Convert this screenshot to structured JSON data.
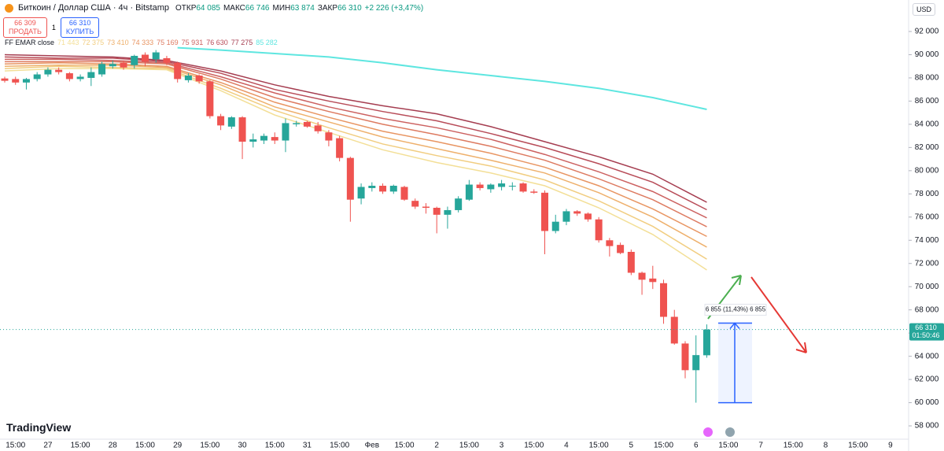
{
  "chart_data": {
    "type": "candlestick",
    "title": "Биткоин / Доллар США · 4ч · Bitstamp",
    "ohlc_legend": [
      {
        "label": "ОТКР",
        "value": "64 085"
      },
      {
        "label": "МАКС",
        "value": "66 746"
      },
      {
        "label": "МИН",
        "value": "63 874"
      },
      {
        "label": "ЗАКР",
        "value": "66 310"
      }
    ],
    "change": "+2 226 (+3,47%)",
    "trade": {
      "sell_price": "66 309",
      "sell": "ПРОДАТЬ",
      "spread": "1",
      "buy_price": "66 310",
      "buy": "КУПИТЬ"
    },
    "currency": "USD",
    "categories": [
      null,
      "15:00",
      null,
      null,
      "27",
      null,
      null,
      "15:00",
      null,
      null,
      "28",
      null,
      null,
      "15:00",
      null,
      null,
      "29",
      null,
      null,
      "15:00",
      null,
      null,
      "30",
      null,
      null,
      "15:00",
      null,
      null,
      "31",
      null,
      null,
      "15:00",
      null,
      null,
      "Фев",
      null,
      null,
      "15:00",
      null,
      null,
      "2",
      null,
      null,
      "15:00",
      null,
      null,
      "3",
      null,
      null,
      "15:00",
      null,
      null,
      "4",
      null,
      null,
      "15:00",
      null,
      null,
      "5",
      null,
      null,
      "15:00",
      null,
      null,
      "6",
      null,
      null,
      "15:00",
      null,
      null,
      "7",
      null,
      null,
      "15:00",
      null,
      null,
      "8",
      null,
      null,
      "15:00",
      null,
      null,
      "9"
    ],
    "open": [
      87950,
      87900,
      87600,
      87900,
      88300,
      88700,
      88400,
      87900,
      88000,
      88300,
      89000,
      89300,
      89100,
      90000,
      89600,
      89700,
      89300,
      87800,
      88200,
      87700,
      84700,
      83800,
      84600,
      82500,
      82600,
      82900,
      82600,
      84000,
      84200,
      83900,
      83300,
      82800,
      81100,
      77600,
      78500,
      78700,
      78200,
      78600,
      77400,
      76900,
      76800,
      76200,
      76600,
      77500,
      78800,
      78400,
      78600,
      78700,
      78900,
      78200,
      78100,
      74800,
      75600,
      76500,
      76300,
      75800,
      74000,
      73600,
      73000,
      71200,
      70700,
      70300,
      67400,
      65100,
      62800,
      64085,
      null,
      null,
      null,
      null,
      null,
      null,
      null,
      null,
      null,
      null,
      null,
      null,
      null,
      null,
      null,
      null,
      null
    ],
    "high": [
      88100,
      88100,
      88000,
      88500,
      88900,
      88900,
      88500,
      88300,
      88900,
      89400,
      89500,
      89500,
      90000,
      90200,
      90400,
      89900,
      89400,
      88400,
      88300,
      87800,
      84900,
      84700,
      84700,
      83200,
      83200,
      83300,
      84500,
      84300,
      84300,
      84200,
      83500,
      83000,
      81200,
      78900,
      79000,
      78900,
      78800,
      78700,
      77600,
      77200,
      76900,
      76900,
      77800,
      79200,
      79000,
      78900,
      79200,
      79000,
      79000,
      78400,
      78300,
      76200,
      76700,
      76600,
      76400,
      76000,
      74200,
      73800,
      73200,
      71300,
      71800,
      70600,
      68000,
      65300,
      65800,
      66746,
      null,
      null,
      null,
      null,
      null,
      null,
      null,
      null,
      null,
      null,
      null,
      null,
      null,
      null,
      null,
      null,
      null
    ],
    "low": [
      87600,
      87400,
      87000,
      87700,
      88100,
      88300,
      87700,
      87700,
      87300,
      88100,
      88800,
      88700,
      88800,
      89000,
      89300,
      89100,
      87600,
      87600,
      87500,
      84500,
      83500,
      83600,
      81000,
      82000,
      82300,
      82300,
      81600,
      83800,
      83700,
      83200,
      82100,
      80800,
      75600,
      77100,
      78200,
      78000,
      78000,
      77400,
      76700,
      76300,
      74600,
      75000,
      76400,
      77400,
      78300,
      78100,
      78300,
      78300,
      78100,
      78000,
      72800,
      74600,
      75300,
      76100,
      75600,
      73800,
      72600,
      72800,
      71000,
      69300,
      69800,
      66800,
      65000,
      62100,
      60000,
      63874,
      null,
      null,
      null,
      null,
      null,
      null,
      null,
      null,
      null,
      null,
      null,
      null,
      null,
      null,
      null,
      null,
      null
    ],
    "close": [
      87750,
      87600,
      87900,
      88300,
      88700,
      88500,
      87900,
      88100,
      88500,
      89200,
      89200,
      88900,
      89900,
      89400,
      90200,
      89300,
      87900,
      88200,
      87700,
      84700,
      83900,
      84600,
      82500,
      82700,
      83000,
      82600,
      84100,
      84100,
      83800,
      83400,
      82600,
      81100,
      77500,
      78600,
      78700,
      78200,
      78700,
      77500,
      76900,
      76800,
      76200,
      76600,
      77600,
      78800,
      78500,
      78800,
      78900,
      78700,
      78200,
      78100,
      74800,
      75600,
      76500,
      76300,
      75800,
      74000,
      73500,
      72900,
      71200,
      70600,
      70400,
      67400,
      65100,
      62800,
      64100,
      66310,
      null,
      null,
      null,
      null,
      null,
      null,
      null,
      null,
      null,
      null,
      null,
      null,
      null,
      null,
      null,
      null,
      null
    ],
    "up_color": "#26a69a",
    "down_color": "#ef5350",
    "indicator": {
      "name": "FF EMAR close",
      "lines": [
        {
          "color": "#f3df97",
          "value_label": "71 443",
          "points": [
            [
              0,
              88600
            ],
            [
              5,
              88800
            ],
            [
              10,
              88800
            ],
            [
              15,
              88700
            ],
            [
              20,
              86900
            ],
            [
              25,
              84800
            ],
            [
              30,
              83300
            ],
            [
              35,
              81800
            ],
            [
              40,
              80700
            ],
            [
              45,
              79800
            ],
            [
              50,
              78700
            ],
            [
              55,
              76800
            ],
            [
              60,
              74500
            ],
            [
              65,
              71443
            ]
          ]
        },
        {
          "color": "#f1cd80",
          "value_label": "72 375",
          "points": [
            [
              0,
              88800
            ],
            [
              5,
              89000
            ],
            [
              10,
              88900
            ],
            [
              15,
              88800
            ],
            [
              20,
              87100
            ],
            [
              25,
              85200
            ],
            [
              30,
              83700
            ],
            [
              35,
              82300
            ],
            [
              40,
              81300
            ],
            [
              45,
              80400
            ],
            [
              50,
              79200
            ],
            [
              55,
              77400
            ],
            [
              60,
              75200
            ],
            [
              65,
              72375
            ]
          ]
        },
        {
          "color": "#eeb06c",
          "value_label": "73 410",
          "points": [
            [
              0,
              89000
            ],
            [
              5,
              89100
            ],
            [
              10,
              89100
            ],
            [
              15,
              88900
            ],
            [
              20,
              87400
            ],
            [
              25,
              85500
            ],
            [
              30,
              84200
            ],
            [
              35,
              82900
            ],
            [
              40,
              81900
            ],
            [
              45,
              80900
            ],
            [
              50,
              79800
            ],
            [
              55,
              78100
            ],
            [
              60,
              76000
            ],
            [
              65,
              73410
            ]
          ]
        },
        {
          "color": "#e89562",
          "value_label": "74 333",
          "points": [
            [
              0,
              89200
            ],
            [
              5,
              89300
            ],
            [
              10,
              89200
            ],
            [
              15,
              89000
            ],
            [
              20,
              87600
            ],
            [
              25,
              85900
            ],
            [
              30,
              84600
            ],
            [
              35,
              83400
            ],
            [
              40,
              82500
            ],
            [
              45,
              81500
            ],
            [
              50,
              80300
            ],
            [
              55,
              78700
            ],
            [
              60,
              76700
            ],
            [
              65,
              74333
            ]
          ]
        },
        {
          "color": "#dd7a60",
          "value_label": "75 169",
          "points": [
            [
              0,
              89400
            ],
            [
              5,
              89400
            ],
            [
              10,
              89400
            ],
            [
              15,
              89200
            ],
            [
              20,
              87900
            ],
            [
              25,
              86300
            ],
            [
              30,
              85100
            ],
            [
              35,
              84000
            ],
            [
              40,
              83100
            ],
            [
              45,
              82100
            ],
            [
              50,
              80900
            ],
            [
              55,
              79300
            ],
            [
              60,
              77500
            ],
            [
              65,
              75169
            ]
          ]
        },
        {
          "color": "#cc6160",
          "value_label": "75 931",
          "points": [
            [
              0,
              89600
            ],
            [
              5,
              89600
            ],
            [
              10,
              89500
            ],
            [
              15,
              89300
            ],
            [
              20,
              88100
            ],
            [
              25,
              86700
            ],
            [
              30,
              85500
            ],
            [
              35,
              84500
            ],
            [
              40,
              83700
            ],
            [
              45,
              82700
            ],
            [
              50,
              81400
            ],
            [
              55,
              79900
            ],
            [
              60,
              78200
            ],
            [
              65,
              75931
            ]
          ]
        },
        {
          "color": "#b84c58",
          "value_label": "76 630",
          "points": [
            [
              0,
              89800
            ],
            [
              5,
              89700
            ],
            [
              10,
              89700
            ],
            [
              15,
              89400
            ],
            [
              20,
              88400
            ],
            [
              25,
              87000
            ],
            [
              30,
              86000
            ],
            [
              35,
              85100
            ],
            [
              40,
              84300
            ],
            [
              45,
              83200
            ],
            [
              50,
              82000
            ],
            [
              55,
              80600
            ],
            [
              60,
              79000
            ],
            [
              65,
              76630
            ]
          ]
        },
        {
          "color": "#a53d50",
          "value_label": "77 275",
          "points": [
            [
              0,
              90000
            ],
            [
              5,
              89900
            ],
            [
              10,
              89800
            ],
            [
              15,
              89500
            ],
            [
              20,
              88600
            ],
            [
              25,
              87400
            ],
            [
              30,
              86400
            ],
            [
              35,
              85600
            ],
            [
              40,
              84900
            ],
            [
              45,
              83800
            ],
            [
              50,
              82500
            ],
            [
              55,
              81200
            ],
            [
              60,
              79700
            ],
            [
              65,
              77275
            ]
          ]
        },
        {
          "color": "#5ee6e0",
          "value_label": "85 282",
          "points": [
            [
              16,
              90600
            ],
            [
              20,
              90400
            ],
            [
              25,
              90100
            ],
            [
              30,
              89800
            ],
            [
              35,
              89300
            ],
            [
              40,
              88700
            ],
            [
              45,
              88200
            ],
            [
              50,
              87700
            ],
            [
              55,
              87100
            ],
            [
              60,
              86300
            ],
            [
              65,
              85282
            ]
          ]
        }
      ]
    },
    "ylim": [
      56850,
      94715
    ],
    "yticks": [
      {
        "value": 92000,
        "label": "92 000"
      },
      {
        "value": 90000,
        "label": "90 000"
      },
      {
        "value": 88000,
        "label": "88 000"
      },
      {
        "value": 86000,
        "label": "86 000"
      },
      {
        "value": 84000,
        "label": "84 000"
      },
      {
        "value": 82000,
        "label": "82 000"
      },
      {
        "value": 80000,
        "label": "80 000"
      },
      {
        "value": 78000,
        "label": "78 000"
      },
      {
        "value": 76000,
        "label": "76 000"
      },
      {
        "value": 74000,
        "label": "74 000"
      },
      {
        "value": 72000,
        "label": "72 000"
      },
      {
        "value": 70000,
        "label": "70 000"
      },
      {
        "value": 68000,
        "label": "68 000"
      },
      {
        "value": 66000,
        "label": "66 000"
      },
      {
        "value": 64000,
        "label": "64 000"
      },
      {
        "value": 62000,
        "label": "62 000"
      },
      {
        "value": 60000,
        "label": "60 000"
      },
      {
        "value": 58000,
        "label": "58 000"
      }
    ],
    "price_line": {
      "value": 66310,
      "label": "66 310",
      "countdown": "01:50:46",
      "color": "#26a69a"
    },
    "measure": {
      "from": 60000,
      "to": 66855,
      "label": "6 855 (11,43%) 6 855"
    },
    "brand": "TradingView"
  }
}
